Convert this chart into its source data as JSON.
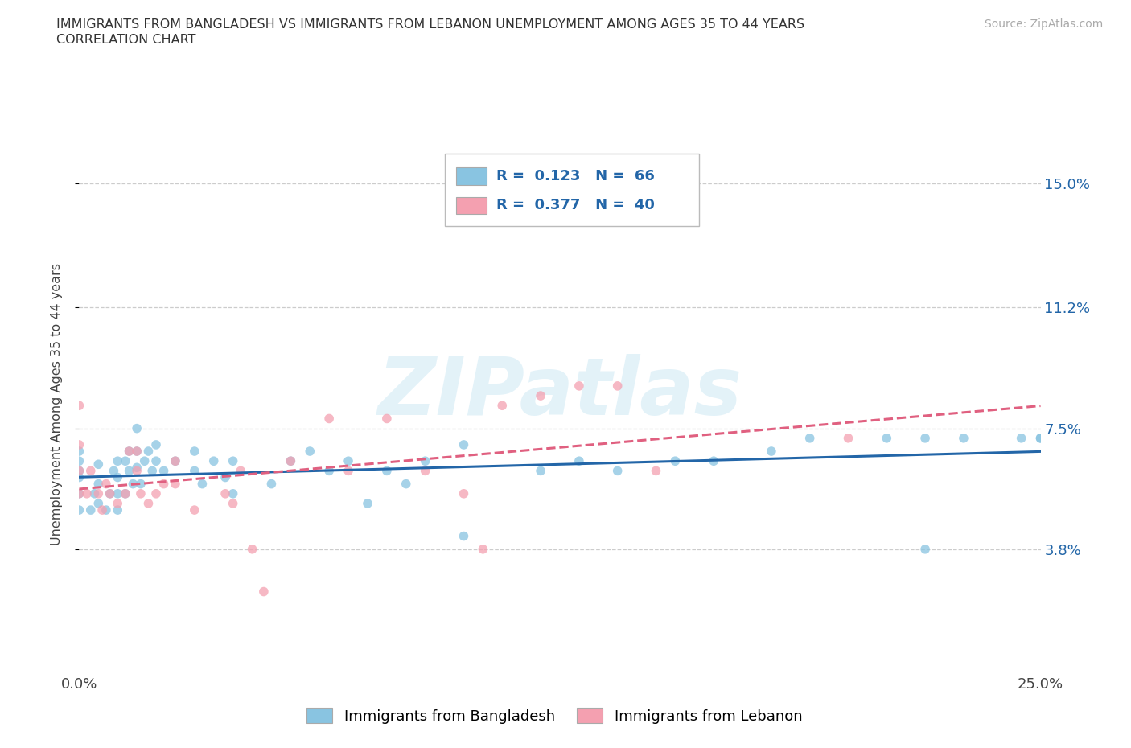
{
  "title_line1": "IMMIGRANTS FROM BANGLADESH VS IMMIGRANTS FROM LEBANON UNEMPLOYMENT AMONG AGES 35 TO 44 YEARS",
  "title_line2": "CORRELATION CHART",
  "source": "Source: ZipAtlas.com",
  "ylabel": "Unemployment Among Ages 35 to 44 years",
  "xlim": [
    0.0,
    0.25
  ],
  "ylim": [
    0.0,
    0.165
  ],
  "yticks": [
    0.038,
    0.075,
    0.112,
    0.15
  ],
  "ytick_labels": [
    "3.8%",
    "7.5%",
    "11.2%",
    "15.0%"
  ],
  "xtick_labels": [
    "0.0%",
    "25.0%"
  ],
  "bangladesh_color": "#89c4e1",
  "lebanon_color": "#f4a0b0",
  "bangladesh_line_color": "#2366a8",
  "lebanon_line_color": "#e06080",
  "watermark_text": "ZIPatlas",
  "bottom_legend1": "Immigrants from Bangladesh",
  "bottom_legend2": "Immigrants from Lebanon",
  "bx": [
    0.0,
    0.0,
    0.0,
    0.0,
    0.0,
    0.0,
    0.003,
    0.004,
    0.005,
    0.005,
    0.005,
    0.007,
    0.008,
    0.009,
    0.01,
    0.01,
    0.01,
    0.01,
    0.012,
    0.012,
    0.013,
    0.013,
    0.014,
    0.015,
    0.015,
    0.015,
    0.016,
    0.017,
    0.018,
    0.019,
    0.02,
    0.02,
    0.022,
    0.025,
    0.03,
    0.03,
    0.032,
    0.035,
    0.038,
    0.04,
    0.04,
    0.05,
    0.055,
    0.06,
    0.065,
    0.07,
    0.075,
    0.08,
    0.085,
    0.09,
    0.1,
    0.1,
    0.12,
    0.13,
    0.14,
    0.155,
    0.165,
    0.18,
    0.19,
    0.21,
    0.22,
    0.23,
    0.245,
    0.25,
    0.25,
    0.22
  ],
  "by": [
    0.05,
    0.055,
    0.06,
    0.062,
    0.065,
    0.068,
    0.05,
    0.055,
    0.052,
    0.058,
    0.064,
    0.05,
    0.055,
    0.062,
    0.05,
    0.055,
    0.06,
    0.065,
    0.055,
    0.065,
    0.068,
    0.062,
    0.058,
    0.063,
    0.068,
    0.075,
    0.058,
    0.065,
    0.068,
    0.062,
    0.065,
    0.07,
    0.062,
    0.065,
    0.062,
    0.068,
    0.058,
    0.065,
    0.06,
    0.055,
    0.065,
    0.058,
    0.065,
    0.068,
    0.062,
    0.065,
    0.052,
    0.062,
    0.058,
    0.065,
    0.042,
    0.07,
    0.062,
    0.065,
    0.062,
    0.065,
    0.065,
    0.068,
    0.072,
    0.072,
    0.072,
    0.072,
    0.072,
    0.072,
    0.072,
    0.038
  ],
  "lx": [
    0.0,
    0.0,
    0.0,
    0.0,
    0.002,
    0.003,
    0.005,
    0.006,
    0.007,
    0.008,
    0.01,
    0.012,
    0.013,
    0.015,
    0.015,
    0.016,
    0.018,
    0.02,
    0.022,
    0.025,
    0.025,
    0.03,
    0.038,
    0.04,
    0.042,
    0.045,
    0.048,
    0.055,
    0.065,
    0.07,
    0.08,
    0.09,
    0.1,
    0.105,
    0.11,
    0.12,
    0.13,
    0.14,
    0.15,
    0.2
  ],
  "ly": [
    0.055,
    0.062,
    0.07,
    0.082,
    0.055,
    0.062,
    0.055,
    0.05,
    0.058,
    0.055,
    0.052,
    0.055,
    0.068,
    0.062,
    0.068,
    0.055,
    0.052,
    0.055,
    0.058,
    0.058,
    0.065,
    0.05,
    0.055,
    0.052,
    0.062,
    0.038,
    0.025,
    0.065,
    0.078,
    0.062,
    0.078,
    0.062,
    0.055,
    0.038,
    0.082,
    0.085,
    0.088,
    0.088,
    0.062,
    0.072
  ],
  "legend1_R": "0.123",
  "legend1_N": "66",
  "legend2_R": "0.377",
  "legend2_N": "40"
}
